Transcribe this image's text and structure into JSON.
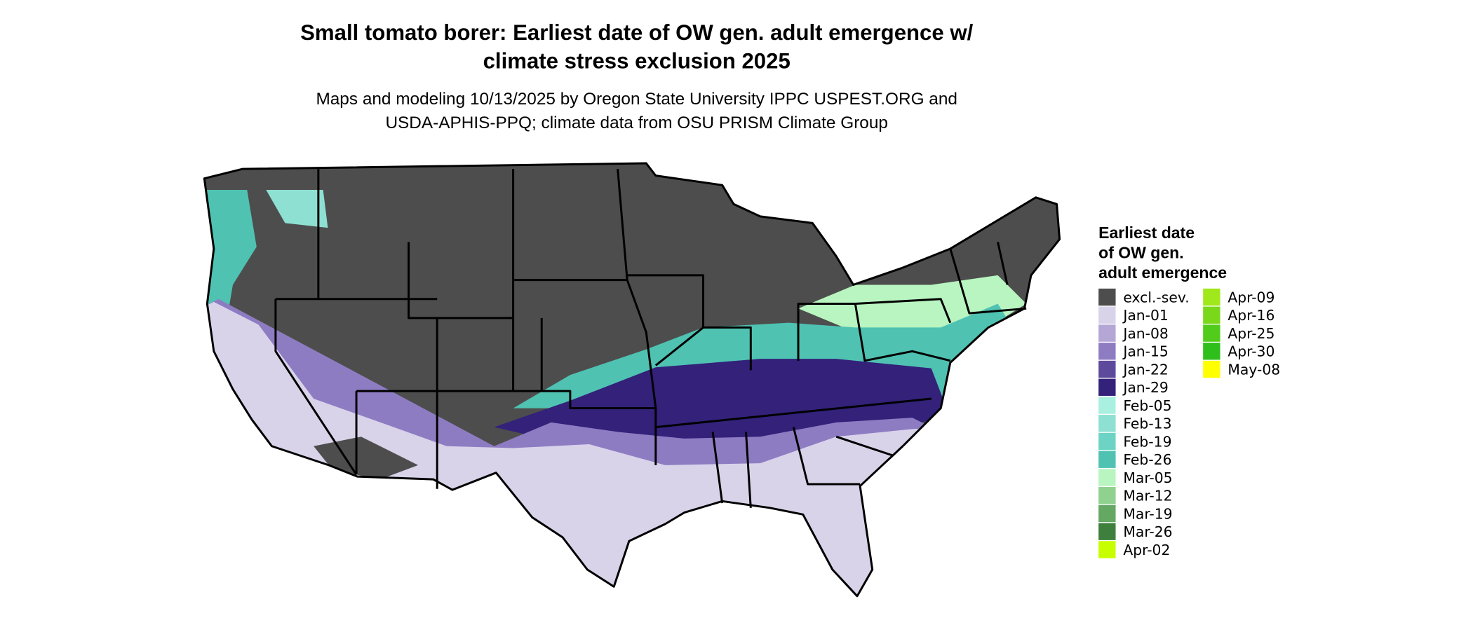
{
  "header": {
    "title": [
      "Small tomato borer: Earliest date of OW gen. adult emergence w/",
      "climate stress exclusion 2025"
    ],
    "subtitle": [
      "Maps and modeling 10/13/2025 by Oregon State University IPPC USPEST.ORG and",
      "USDA-APHIS-PPQ; climate data from OSU PRISM Climate Group"
    ]
  },
  "legend": {
    "title": [
      "Earliest date",
      "of OW gen.",
      "adult emergence"
    ],
    "entries": [
      {
        "label": "excl.-sev.",
        "color": "#4d4d4d"
      },
      {
        "label": "Jan-01",
        "color": "#d9d3ea"
      },
      {
        "label": "Jan-08",
        "color": "#b4a7d6"
      },
      {
        "label": "Jan-15",
        "color": "#8e7cc3"
      },
      {
        "label": "Jan-22",
        "color": "#5e4a9c"
      },
      {
        "label": "Jan-29",
        "color": "#33217a"
      },
      {
        "label": "Feb-05",
        "color": "#aaf0e0"
      },
      {
        "label": "Feb-13",
        "color": "#8ee0d2"
      },
      {
        "label": "Feb-19",
        "color": "#6dd3c4"
      },
      {
        "label": "Feb-26",
        "color": "#4fc2b2"
      },
      {
        "label": "Mar-05",
        "color": "#b8f5c0"
      },
      {
        "label": "Mar-12",
        "color": "#8fd18f"
      },
      {
        "label": "Mar-19",
        "color": "#64a864"
      },
      {
        "label": "Mar-26",
        "color": "#3e7f3e"
      },
      {
        "label": "Apr-02",
        "color": "#c8ff00"
      },
      {
        "label": "Apr-09",
        "color": "#a0e81c"
      },
      {
        "label": "Apr-16",
        "color": "#7ad81a"
      },
      {
        "label": "Apr-25",
        "color": "#52cc1a"
      },
      {
        "label": "Apr-30",
        "color": "#2fbf1a"
      },
      {
        "label": "May-08",
        "color": "#ffff00"
      }
    ]
  }
}
